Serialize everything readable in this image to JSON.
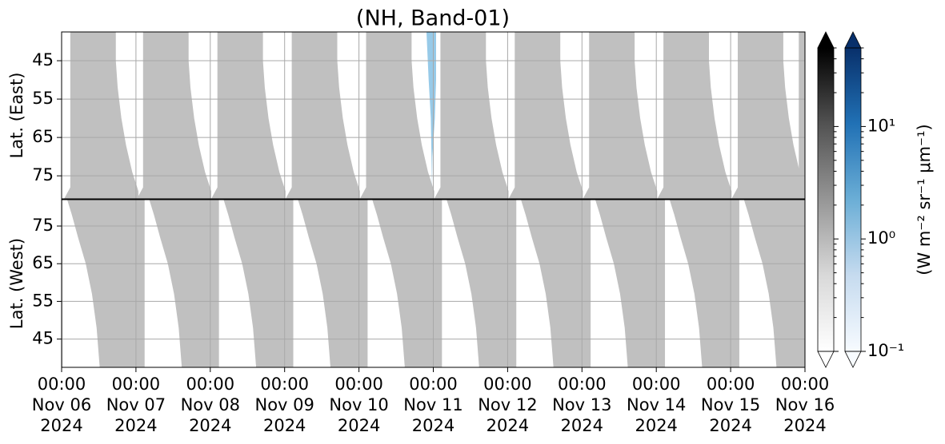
{
  "chart_data": {
    "type": "heatmap",
    "title": "(NH, Band-01)",
    "xlim": [
      "2024-11-06T00:00",
      "2024-11-16T00:00"
    ],
    "xticks": [
      {
        "value": "2024-11-06T00:00",
        "label": [
          "00:00",
          "Nov 06",
          "2024"
        ]
      },
      {
        "value": "2024-11-07T00:00",
        "label": [
          "00:00",
          "Nov 07",
          "2024"
        ]
      },
      {
        "value": "2024-11-08T00:00",
        "label": [
          "00:00",
          "Nov 08",
          "2024"
        ]
      },
      {
        "value": "2024-11-09T00:00",
        "label": [
          "00:00",
          "Nov 09",
          "2024"
        ]
      },
      {
        "value": "2024-11-10T00:00",
        "label": [
          "00:00",
          "Nov 10",
          "2024"
        ]
      },
      {
        "value": "2024-11-11T00:00",
        "label": [
          "00:00",
          "Nov 11",
          "2024"
        ]
      },
      {
        "value": "2024-11-12T00:00",
        "label": [
          "00:00",
          "Nov 12",
          "2024"
        ]
      },
      {
        "value": "2024-11-13T00:00",
        "label": [
          "00:00",
          "Nov 13",
          "2024"
        ]
      },
      {
        "value": "2024-11-14T00:00",
        "label": [
          "00:00",
          "Nov 14",
          "2024"
        ]
      },
      {
        "value": "2024-11-15T00:00",
        "label": [
          "00:00",
          "Nov 15",
          "2024"
        ]
      },
      {
        "value": "2024-11-16T00:00",
        "label": [
          "00:00",
          "Nov 16",
          "2024"
        ]
      }
    ],
    "grid": true,
    "panels": [
      {
        "ylabel": "Lat. (East)",
        "ylim": [
          37.5,
          81
        ],
        "yticks": [
          45,
          55,
          65,
          75
        ],
        "background": "#ffffff",
        "patch_color": "#c0c0c0",
        "patch_shape": [
          [
            0,
            37.5
          ],
          [
            0,
            78
          ],
          [
            -2,
            81
          ],
          [
            22,
            81
          ],
          [
            22,
            79
          ],
          [
            20,
            74
          ],
          [
            18,
            67
          ],
          [
            16.5,
            60
          ],
          [
            15.3,
            52
          ],
          [
            14.7,
            45
          ],
          [
            14.7,
            37.5
          ]
        ],
        "patch_starts": [
          2.8,
          26.3,
          50.3,
          74.3,
          98.3,
          122.3,
          146.3,
          170.3,
          194.3,
          218.3,
          238
        ],
        "streak": {
          "color": "#8cc4e6",
          "points": [
            [
              117.8,
              37.5
            ],
            [
              120.9,
              37.5
            ],
            [
              120.9,
              50
            ],
            [
              120.5,
              60
            ],
            [
              119.7,
              70
            ],
            [
              119.6,
              78
            ],
            [
              119.2,
              60
            ],
            [
              118.5,
              50
            ]
          ]
        }
      },
      {
        "ylabel": "Lat. (West)",
        "ylim": [
          82,
          37.5
        ],
        "yticks": [
          75,
          65,
          55,
          45
        ],
        "background": "#c0c0c0",
        "patch_color": "#ffffff",
        "patch_shape": [
          [
            0,
            82
          ],
          [
            1.5,
            82
          ],
          [
            3,
            78
          ],
          [
            5,
            72
          ],
          [
            7.5,
            65
          ],
          [
            9.5,
            57
          ],
          [
            11,
            48
          ],
          [
            12,
            37.5
          ],
          [
            0,
            37.5
          ]
        ],
        "patch_starts": [
          0.3,
          26.8,
          50.8,
          74.8,
          98.8,
          122.8,
          146.8,
          170.8,
          194.8,
          218.8
        ]
      }
    ],
    "colorbars": [
      {
        "colors": [
          "#ffffff",
          "#d9d9d9",
          "#969696",
          "#525252",
          "#000000"
        ]
      },
      {
        "colors": [
          "#f7fbff",
          "#c6dbef",
          "#6baed6",
          "#2171b5",
          "#08306b"
        ]
      }
    ],
    "clim": [
      0.1,
      50
    ],
    "log_scale": true,
    "cticks": [
      {
        "value": 0.1,
        "label": "10⁻¹"
      },
      {
        "value": 1,
        "label": "10⁰"
      },
      {
        "value": 10,
        "label": "10¹"
      }
    ],
    "cticks_minor": [
      0.2,
      0.3,
      0.4,
      0.5,
      0.6,
      0.7,
      0.8,
      0.9,
      2,
      3,
      4,
      5,
      6,
      7,
      8,
      9,
      20,
      30,
      40,
      50
    ],
    "colorbar_label": "(W m⁻² sr⁻¹ μm⁻¹)"
  }
}
